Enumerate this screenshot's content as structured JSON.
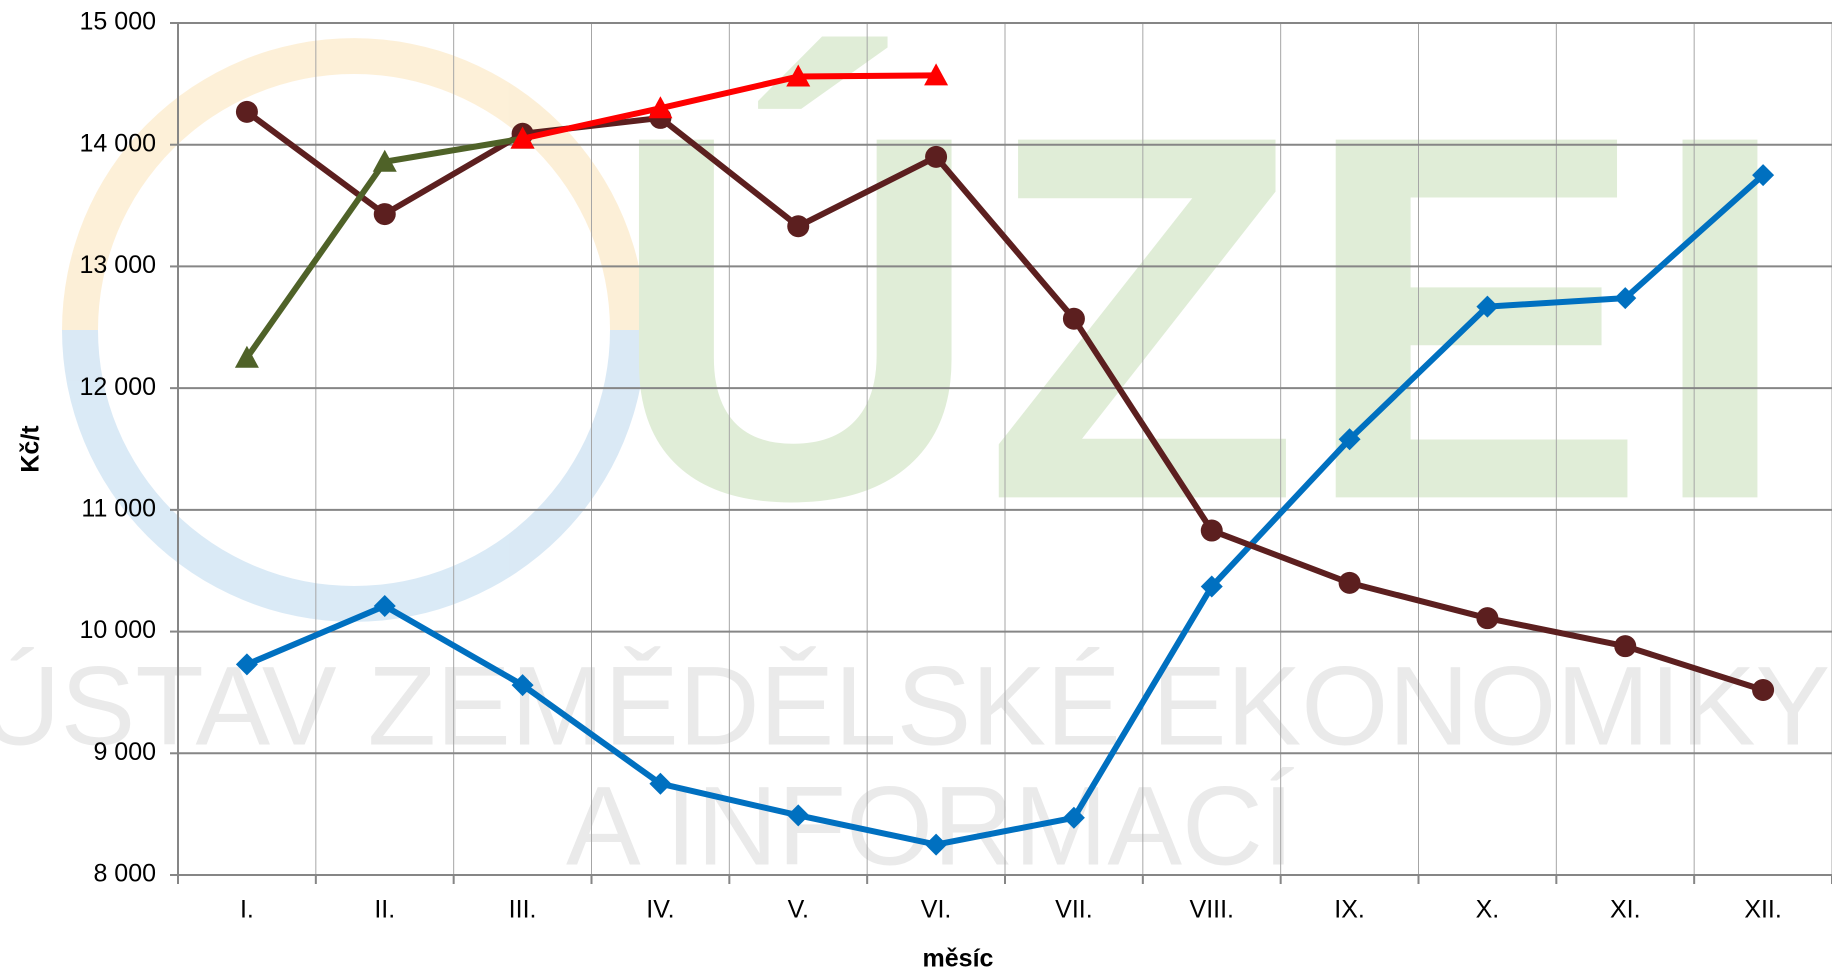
{
  "chart_data": {
    "type": "line",
    "watermark": [
      "ÚZEI",
      "ÚSTAV ZEMĚDĚLSKÉ EKONOMIKY",
      "A INFORMACÍ"
    ],
    "x_label": "měsíc",
    "y_label": "Kč/t",
    "categories": [
      "I.",
      "II.",
      "III.",
      "IV.",
      "V.",
      "VI.",
      "VII.",
      "VIII.",
      "IX.",
      "X.",
      "XI.",
      "XII."
    ],
    "series": [
      {
        "color": "#0070c0",
        "marker": "diamond",
        "values": [
          9730,
          10210,
          9560,
          8750,
          8490,
          8250,
          8470,
          10370,
          11580,
          12670,
          12740,
          13750
        ]
      },
      {
        "color": "#5c1f1f",
        "marker": "circle",
        "values": [
          14270,
          13430,
          14090,
          14220,
          13330,
          13900,
          12570,
          10830,
          10400,
          10110,
          9880,
          9520
        ]
      },
      {
        "color": "#4f6228",
        "marker": "triangle",
        "values": [
          12250,
          13860,
          14050,
          null,
          null,
          null,
          null,
          null,
          null,
          null,
          null,
          null
        ]
      },
      {
        "color": "#ff0000",
        "marker": "triangle",
        "values": [
          null,
          null,
          14050,
          14300,
          14560,
          14570,
          null,
          null,
          null,
          null,
          null,
          null
        ]
      }
    ],
    "ylim": [
      8000,
      15000
    ],
    "yticks": [
      {
        "value": 8000,
        "label": "8 000"
      },
      {
        "value": 9000,
        "label": "9 000"
      },
      {
        "value": 10000,
        "label": "10 000"
      },
      {
        "value": 11000,
        "label": "11 000"
      },
      {
        "value": 12000,
        "label": "12 000"
      },
      {
        "value": 13000,
        "label": "13 000"
      },
      {
        "value": 14000,
        "label": "14 000"
      },
      {
        "value": 15000,
        "label": "15 000"
      }
    ],
    "grid": true
  }
}
